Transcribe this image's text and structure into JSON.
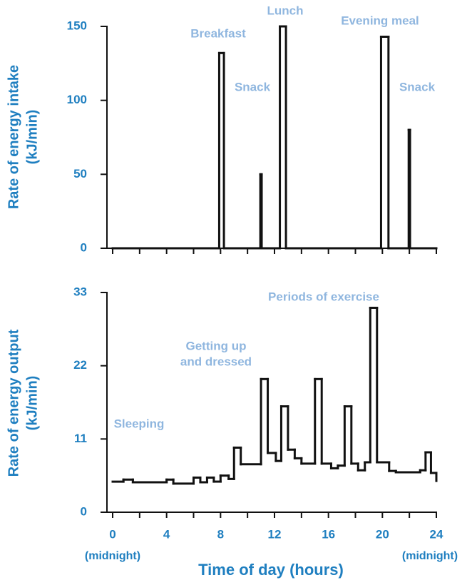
{
  "chart_data": [
    {
      "type": "step",
      "ylabel": [
        "Rate of energy intake",
        "(kJ/min)"
      ],
      "x": [
        0,
        7.9,
        8.25,
        10.95,
        11.05,
        12.4,
        12.85,
        19.9,
        20.45,
        21.95,
        22.05,
        24
      ],
      "values": [
        0,
        132,
        0,
        50,
        0,
        150,
        0,
        143,
        0,
        80,
        0,
        0
      ],
      "color": "#111111",
      "xlim": [
        0,
        24
      ],
      "xticks": [
        0,
        2,
        4,
        6,
        8,
        10,
        12,
        14,
        16,
        18,
        20,
        22,
        24
      ],
      "ylim": [
        0,
        150
      ],
      "yticks": [
        0,
        50,
        100,
        150
      ],
      "annotations": [
        "Breakfast",
        "Lunch",
        "Evening meal",
        "Snack",
        "Snack"
      ]
    },
    {
      "type": "step",
      "ylabel": [
        "Rate of energy output",
        "(kJ/min)"
      ],
      "xlabel": "Time of day (hours)",
      "x_end_labels": [
        "(midnight)",
        "(midnight)"
      ],
      "x": [
        0,
        0.8,
        1.5,
        4,
        4.5,
        6,
        6.5,
        7,
        7.5,
        8,
        8.6,
        9,
        9.5,
        11,
        11.5,
        12.1,
        12.5,
        13,
        13.5,
        14,
        15,
        15.5,
        16.2,
        16.7,
        17.2,
        17.7,
        18.2,
        18.7,
        19.1,
        19.6,
        20.5,
        21,
        22.8,
        23.2,
        23.6,
        24
      ],
      "values": [
        4.6,
        4.9,
        4.5,
        4.9,
        4.3,
        5.2,
        4.5,
        5.2,
        4.6,
        5.5,
        5.0,
        9.7,
        7.2,
        20,
        8.9,
        7.7,
        15.9,
        9.4,
        8.1,
        7.3,
        20,
        7.3,
        6.6,
        7.0,
        15.9,
        7.3,
        6.3,
        7.5,
        30.7,
        7.5,
        6.2,
        6.0,
        6.3,
        9.0,
        5.9,
        4.7
      ],
      "color": "#111111",
      "xlim": [
        0,
        24
      ],
      "xticks": [
        0,
        4,
        8,
        12,
        16,
        20,
        24
      ],
      "xminorticks": [
        2,
        6,
        10,
        14,
        18,
        22
      ],
      "ylim": [
        0,
        33
      ],
      "yticks": [
        0,
        11,
        22,
        33
      ],
      "annotations": [
        "Periods of exercise",
        "Getting up",
        "and dressed",
        "Sleeping"
      ]
    }
  ]
}
